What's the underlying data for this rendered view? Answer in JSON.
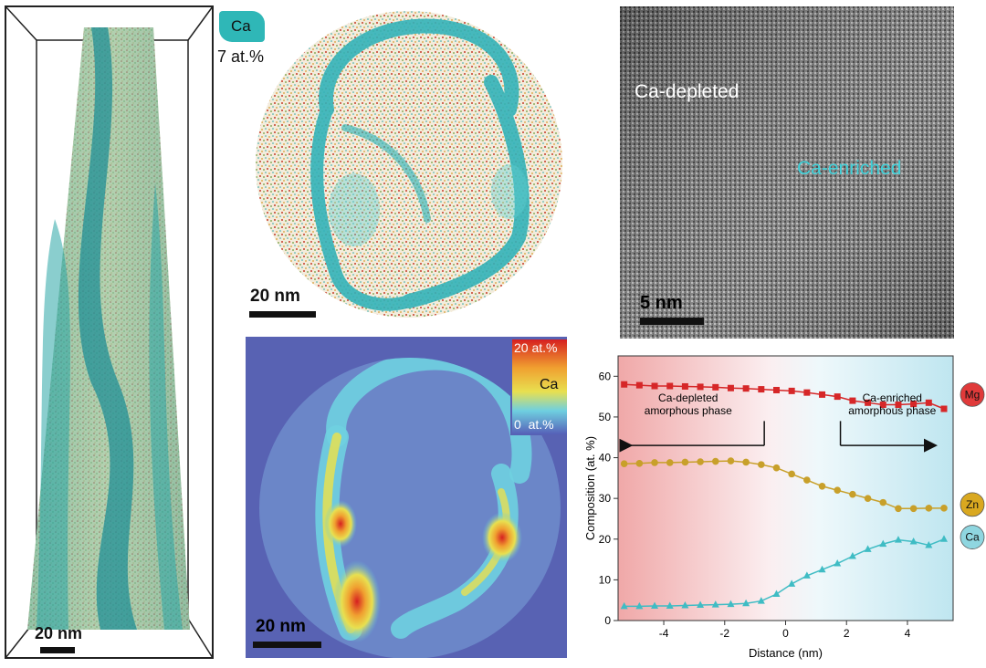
{
  "tower": {
    "scale_label": "20 nm",
    "iso_label": "Ca",
    "iso_value": "7 at.%"
  },
  "cross_section": {
    "scale_label": "20 nm"
  },
  "tem": {
    "scale_label": "5 nm",
    "label_depleted": "Ca-depleted",
    "label_enriched": "Ca-enriched"
  },
  "heatmap": {
    "scale_label": "20 nm",
    "colorbar_max": "20 at.%",
    "colorbar_elem": "Ca",
    "colorbar_min": "0  at.%"
  },
  "chart_data": {
    "type": "line",
    "xlabel": "Distance (nm)",
    "ylabel": "Composition (at. %)",
    "xlim": [
      -5.5,
      5.5
    ],
    "ylim": [
      0,
      65
    ],
    "xticks": [
      "-4",
      "-2",
      "0",
      "2",
      "4"
    ],
    "yticks": [
      "0",
      "10",
      "20",
      "30",
      "40",
      "50",
      "60"
    ],
    "annotation_left": [
      "Ca-depleted",
      "amorphous phase"
    ],
    "annotation_right": [
      "Ca-enriched",
      "amorphous phase"
    ],
    "series": [
      {
        "name": "Mg",
        "color": "#d62728",
        "x": [
          -5.3,
          -4.8,
          -4.3,
          -3.8,
          -3.3,
          -2.8,
          -2.3,
          -1.8,
          -1.3,
          -0.8,
          -0.3,
          0.2,
          0.7,
          1.2,
          1.7,
          2.2,
          2.7,
          3.2,
          3.7,
          4.2,
          4.7,
          5.2
        ],
        "values": [
          58,
          57.8,
          57.6,
          57.6,
          57.5,
          57.4,
          57.3,
          57.1,
          57,
          56.8,
          56.6,
          56.4,
          56,
          55.5,
          55,
          54,
          53.5,
          53,
          53,
          53.2,
          53.5,
          52
        ]
      },
      {
        "name": "Zn",
        "color": "#c8a02a",
        "x": [
          -5.3,
          -4.8,
          -4.3,
          -3.8,
          -3.3,
          -2.8,
          -2.3,
          -1.8,
          -1.3,
          -0.8,
          -0.3,
          0.2,
          0.7,
          1.2,
          1.7,
          2.2,
          2.7,
          3.2,
          3.7,
          4.2,
          4.7,
          5.2
        ],
        "values": [
          38.5,
          38.6,
          38.8,
          38.8,
          38.9,
          39,
          39.1,
          39.2,
          38.9,
          38.3,
          37.5,
          36,
          34.5,
          33,
          32,
          31,
          30,
          29,
          27.5,
          27.5,
          27.6,
          27.6
        ]
      },
      {
        "name": "Ca",
        "color": "#3fbcc4",
        "x": [
          -5.3,
          -4.8,
          -4.3,
          -3.8,
          -3.3,
          -2.8,
          -2.3,
          -1.8,
          -1.3,
          -0.8,
          -0.3,
          0.2,
          0.7,
          1.2,
          1.7,
          2.2,
          2.7,
          3.2,
          3.7,
          4.2,
          4.7,
          5.2
        ],
        "values": [
          3.5,
          3.5,
          3.6,
          3.6,
          3.7,
          3.8,
          3.9,
          4,
          4.2,
          4.8,
          6.5,
          9,
          11,
          12.5,
          14,
          15.8,
          17.5,
          18.8,
          19.8,
          19.4,
          18.5,
          20
        ]
      }
    ]
  }
}
